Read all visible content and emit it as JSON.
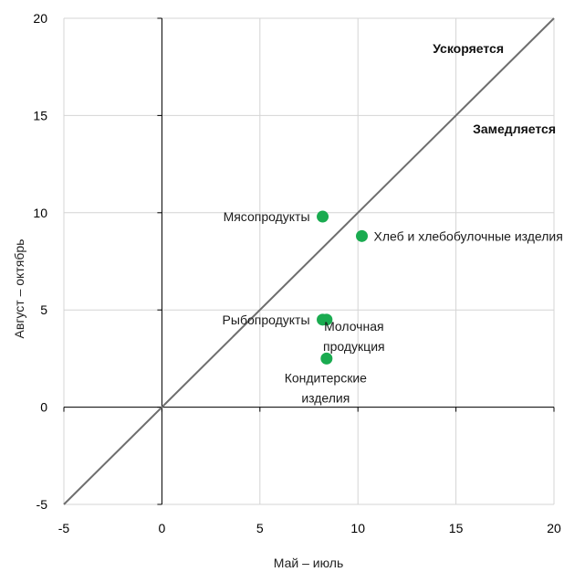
{
  "chart_data": {
    "type": "scatter",
    "xlabel": "Май – июль",
    "ylabel": "Август – октябрь",
    "xlim": [
      -5,
      20
    ],
    "ylim": [
      -5,
      20
    ],
    "xticks": [
      -5,
      0,
      5,
      10,
      15,
      20
    ],
    "yticks": [
      -5,
      0,
      5,
      10,
      15,
      20
    ],
    "grid": true,
    "marker_color": "#1aab50",
    "diagonal_color": "#6e6e6e",
    "reference_line": "y = x",
    "points": [
      {
        "label": "Мясопродукты",
        "x": 8.2,
        "y": 9.8
      },
      {
        "label": "Хлеб и хлебобулочные изделия",
        "x": 10.2,
        "y": 8.8
      },
      {
        "label": "Рыбопродукты",
        "x": 8.2,
        "y": 4.5
      },
      {
        "label": "Молочная продукция",
        "x": 8.4,
        "y": 4.5
      },
      {
        "label": "Кондитерские изделия",
        "x": 8.4,
        "y": 2.5
      }
    ],
    "annotations": [
      {
        "text": "Ускоряется"
      },
      {
        "text": "Замедляется"
      }
    ]
  }
}
